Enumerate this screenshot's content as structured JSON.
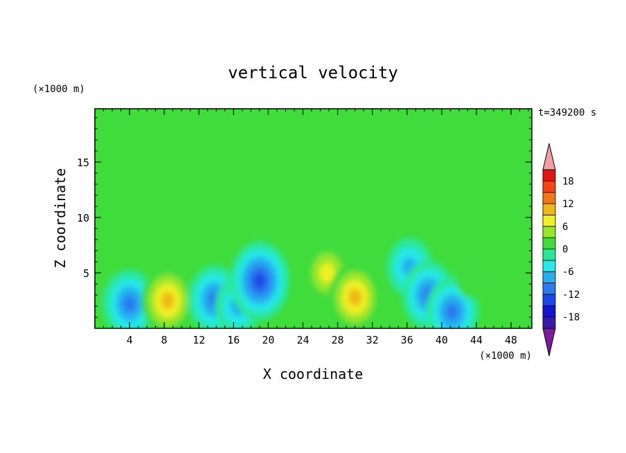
{
  "chart_data": {
    "type": "heatmap",
    "title": "vertical velocity",
    "xlabel": "X coordinate",
    "ylabel": "Z coordinate",
    "x_unit": "(×1000 m)",
    "y_unit": "(×1000 m)",
    "time_label": "t=349200 s",
    "xlim": [
      0,
      50.4
    ],
    "ylim": [
      0,
      19.8
    ],
    "x_ticks": [
      4,
      8,
      12,
      16,
      20,
      24,
      28,
      32,
      36,
      40,
      44,
      48
    ],
    "y_ticks": [
      5,
      10,
      15
    ],
    "colorbar": {
      "levels": [
        -21,
        -18,
        -15,
        -12,
        -9,
        -6,
        -3,
        0,
        3,
        6,
        9,
        12,
        15,
        18,
        21
      ],
      "tick_labels": [
        18,
        12,
        6,
        0,
        -6,
        -12,
        -18
      ],
      "colors": [
        "#7a1c9c",
        "#3a1aa8",
        "#1414c8",
        "#1e46e6",
        "#2a7af0",
        "#28aef0",
        "#28e8e8",
        "#2ae69a",
        "#40dc3c",
        "#96e62a",
        "#f0f028",
        "#f0b814",
        "#f07814",
        "#f04614",
        "#e01414",
        "#f0a0a0"
      ]
    },
    "features": [
      {
        "x": 1.2,
        "z": 3.2,
        "value": 3
      },
      {
        "x": 4.0,
        "z": 2.2,
        "value": -11
      },
      {
        "x": 8.4,
        "z": 2.5,
        "value": 12
      },
      {
        "x": 13.8,
        "z": 2.6,
        "value": -12
      },
      {
        "x": 16.5,
        "z": 2.0,
        "value": -8
      },
      {
        "x": 19.0,
        "z": 4.3,
        "value": -16
      },
      {
        "x": 26.8,
        "z": 5.0,
        "value": 10
      },
      {
        "x": 30.0,
        "z": 2.8,
        "value": 11
      },
      {
        "x": 36.3,
        "z": 5.5,
        "value": -8
      },
      {
        "x": 38.5,
        "z": 3.0,
        "value": -11
      },
      {
        "x": 41.2,
        "z": 1.5,
        "value": -11
      },
      {
        "x": 43.5,
        "z": 4.5,
        "value": 4
      }
    ]
  }
}
